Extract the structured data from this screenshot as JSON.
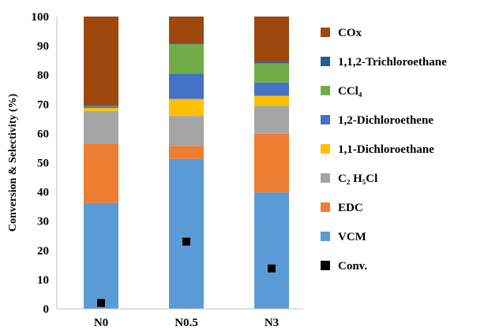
{
  "chart_data": {
    "type": "bar",
    "stacked": true,
    "categories": [
      "N0",
      "N0.5",
      "N3"
    ],
    "ylabel": "Conversion & Selectivity (%)",
    "xlabel": "",
    "ylim": [
      0,
      100
    ],
    "yticks": [
      0,
      10,
      20,
      30,
      40,
      50,
      60,
      70,
      80,
      90,
      100
    ],
    "legend_position": "right",
    "grid": false,
    "series": [
      {
        "name": "VCM",
        "color": "#5B9BD5",
        "values": [
          36.2,
          51.3,
          39.8
        ]
      },
      {
        "name": "EDC",
        "color": "#ED7D31",
        "values": [
          20.3,
          4.4,
          20.1
        ]
      },
      {
        "name": "C₂ H₅Cl",
        "color": "#A5A5A5",
        "values": [
          11.2,
          10.3,
          9.6
        ]
      },
      {
        "name": "1,1-Dichloroethane",
        "color": "#FFC000",
        "values": [
          1.0,
          5.8,
          3.4
        ]
      },
      {
        "name": "1,2-Dichloroethene",
        "color": "#4472C4",
        "values": [
          0.5,
          8.7,
          4.5
        ]
      },
      {
        "name": "CCl₄",
        "color": "#70AD47",
        "values": [
          0.2,
          10.0,
          6.6
        ]
      },
      {
        "name": "1,1,2-Trichloroethane",
        "color": "#255E91",
        "values": [
          0.3,
          0.3,
          0.6
        ]
      },
      {
        "name": "COx",
        "color": "#9E480E",
        "values": [
          30.3,
          9.2,
          15.4
        ]
      }
    ],
    "conversion": {
      "name": "Conv.",
      "color": "#000000",
      "values": [
        2.0,
        23.0,
        13.8
      ]
    }
  }
}
